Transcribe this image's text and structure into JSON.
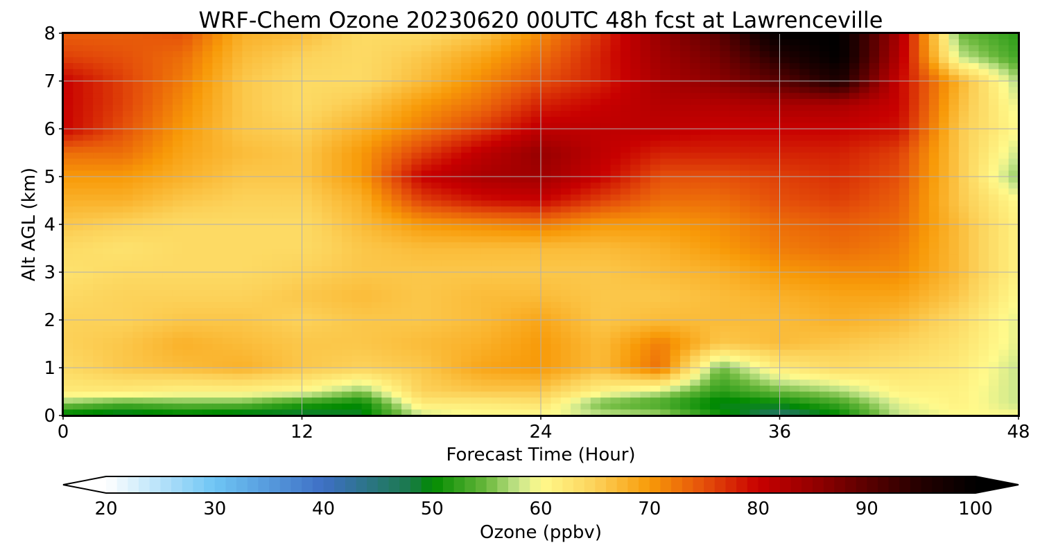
{
  "chart_data": {
    "type": "heatmap",
    "title": "WRF-Chem Ozone  20230620 00UTC 48h fcst at Lawrenceville",
    "xlabel": "Forecast Time (Hour)",
    "ylabel": "Alt AGL (km)",
    "xlim": [
      0,
      48
    ],
    "ylim": [
      0,
      8
    ],
    "xticks": [
      0,
      12,
      24,
      36,
      48
    ],
    "yticks": [
      0,
      1,
      2,
      3,
      4,
      5,
      6,
      7,
      8
    ],
    "grid": true,
    "colorbar": {
      "label": "Ozone  (ppbv)",
      "range": [
        20,
        100
      ],
      "ticks": [
        20,
        30,
        40,
        50,
        60,
        70,
        80,
        90,
        100
      ],
      "extend": "both",
      "colors": {
        "20": "#ffffff",
        "30": "#6ec5f4",
        "40": "#3e6fc5",
        "48": "#1a7a4a",
        "50": "#008a00",
        "55": "#6ab83c",
        "58": "#c8e68c",
        "60": "#fffa8c",
        "65": "#fcd25a",
        "70": "#f89a08",
        "75": "#e5500a",
        "80": "#c80000",
        "85": "#960000",
        "90": "#5a0000",
        "95": "#230000",
        "100": "#000000"
      }
    },
    "x": [
      0,
      3,
      6,
      9,
      12,
      15,
      18,
      21,
      24,
      27,
      30,
      33,
      36,
      39,
      42,
      45,
      48
    ],
    "y": [
      0,
      0.25,
      0.5,
      1,
      1.5,
      2,
      2.5,
      3,
      3.5,
      4,
      4.5,
      5,
      5.5,
      6,
      6.5,
      7,
      7.5,
      8
    ],
    "z": [
      [
        49,
        48,
        49,
        48,
        48,
        49,
        58,
        60,
        60,
        58,
        57,
        51,
        46,
        50,
        58,
        60,
        60
      ],
      [
        56,
        54,
        55,
        55,
        52,
        50,
        62,
        62,
        63,
        55,
        53,
        49,
        50,
        53,
        59,
        61,
        58
      ],
      [
        62,
        62,
        61,
        61,
        60,
        56,
        65,
        66,
        66,
        61,
        58,
        52,
        55,
        57,
        61,
        61,
        58
      ],
      [
        64,
        66,
        67,
        68,
        66,
        65,
        66,
        69,
        70,
        67,
        73,
        55,
        62,
        64,
        63,
        62,
        58
      ],
      [
        65,
        66,
        68,
        67,
        66,
        66,
        67,
        68,
        70,
        67,
        72,
        66,
        67,
        66,
        65,
        63,
        59
      ],
      [
        65,
        65,
        66,
        66,
        65,
        66,
        66,
        67,
        69,
        66,
        67,
        67,
        67,
        68,
        67,
        64,
        59
      ],
      [
        64,
        65,
        65,
        65,
        66,
        67,
        66,
        67,
        67,
        66,
        66,
        67,
        68,
        69,
        69,
        66,
        60
      ],
      [
        63,
        64,
        64,
        64,
        65,
        66,
        66,
        66,
        66,
        66,
        67,
        68,
        70,
        71,
        71,
        67,
        61
      ],
      [
        64,
        63,
        64,
        64,
        64,
        66,
        67,
        67,
        67,
        67,
        68,
        70,
        72,
        73,
        72,
        67,
        61
      ],
      [
        66,
        65,
        64,
        64,
        64,
        67,
        70,
        71,
        72,
        70,
        70,
        71,
        73,
        74,
        73,
        67,
        61
      ],
      [
        68,
        68,
        66,
        65,
        65,
        68,
        76,
        79,
        80,
        76,
        73,
        73,
        75,
        76,
        74,
        66,
        60
      ],
      [
        70,
        70,
        68,
        66,
        66,
        70,
        80,
        83,
        84,
        80,
        75,
        75,
        76,
        77,
        75,
        66,
        56
      ],
      [
        73,
        73,
        69,
        67,
        66,
        70,
        76,
        81,
        85,
        81,
        78,
        78,
        78,
        78,
        76,
        66,
        58
      ],
      [
        80,
        75,
        70,
        66,
        65,
        68,
        72,
        76,
        81,
        81,
        81,
        80,
        80,
        80,
        79,
        66,
        60
      ],
      [
        80,
        76,
        71,
        66,
        64,
        66,
        70,
        73,
        78,
        80,
        82,
        82,
        83,
        83,
        80,
        67,
        59
      ],
      [
        80,
        76,
        72,
        66,
        64,
        64,
        67,
        71,
        75,
        78,
        83,
        86,
        90,
        96,
        80,
        68,
        57
      ],
      [
        76,
        75,
        73,
        67,
        65,
        64,
        66,
        69,
        73,
        78,
        84,
        88,
        95,
        100,
        82,
        58,
        53
      ],
      [
        74,
        74,
        75,
        68,
        67,
        64,
        64,
        66,
        71,
        77,
        85,
        90,
        100,
        100,
        83,
        55,
        52
      ]
    ]
  }
}
